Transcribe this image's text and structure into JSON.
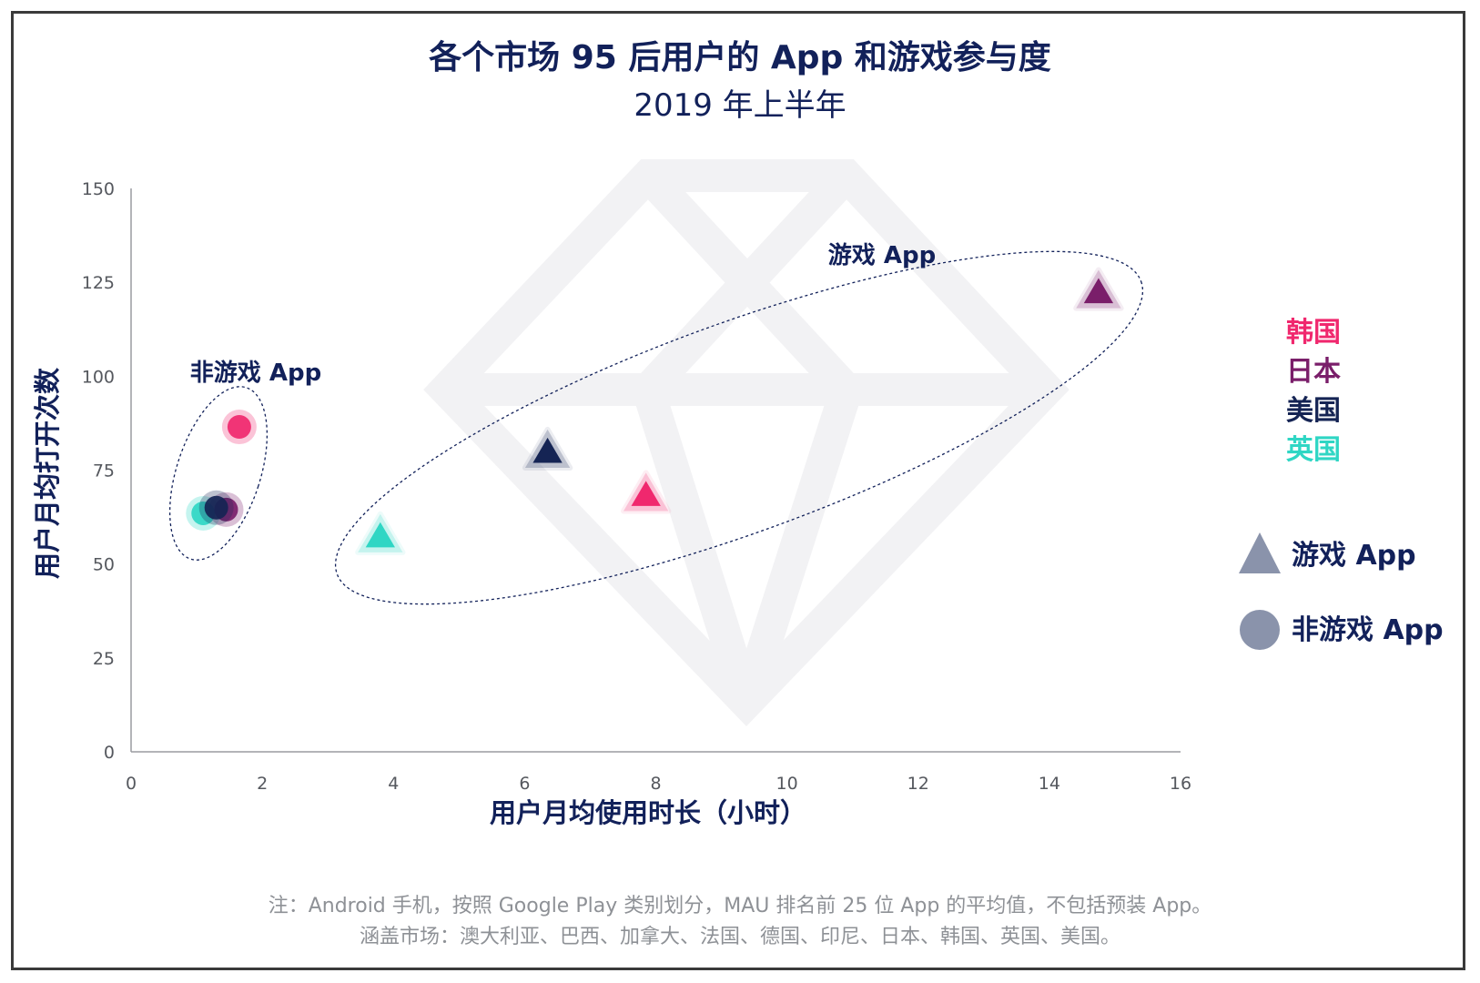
{
  "chart_data": {
    "type": "scatter",
    "title": "各个市场 95 后用户的 App 和游戏参与度",
    "subtitle": "2019 年上半年",
    "xlabel": "用户月均使用时长（小时）",
    "ylabel": "用户月均打开次数",
    "xlim": [
      0,
      16
    ],
    "ylim": [
      0,
      150
    ],
    "xticks": [
      "0",
      "2",
      "4",
      "6",
      "8",
      "10",
      "12",
      "14",
      "16"
    ],
    "yticks": [
      "0",
      "25",
      "50",
      "75",
      "100",
      "125",
      "150"
    ],
    "grid": false,
    "legend_position": "right",
    "countries": [
      {
        "name": "韩国",
        "color": "#f0286e"
      },
      {
        "name": "日本",
        "color": "#7a1e6a"
      },
      {
        "name": "美国",
        "color": "#152454"
      },
      {
        "name": "英国",
        "color": "#2fd6c4"
      }
    ],
    "shape_legend": [
      {
        "label": "游戏 App",
        "shape": "triangle",
        "color": "#8a93ab"
      },
      {
        "label": "非游戏 App",
        "shape": "circle",
        "color": "#8a93ab"
      }
    ],
    "groups": [
      {
        "label": "非游戏 App",
        "shape": "circle"
      },
      {
        "label": "游戏 App",
        "shape": "triangle"
      }
    ],
    "points": [
      {
        "country": "英国",
        "category": "非游戏 App",
        "x": 1.1,
        "y": 63.5
      },
      {
        "country": "日本",
        "category": "非游戏 App",
        "x": 1.45,
        "y": 64.5
      },
      {
        "country": "美国",
        "category": "非游戏 App",
        "x": 1.3,
        "y": 65
      },
      {
        "country": "韩国",
        "category": "非游戏 App",
        "x": 1.65,
        "y": 86.5
      },
      {
        "country": "英国",
        "category": "游戏 App",
        "x": 3.8,
        "y": 57
      },
      {
        "country": "美国",
        "category": "游戏 App",
        "x": 6.35,
        "y": 79.5
      },
      {
        "country": "韩国",
        "category": "游戏 App",
        "x": 7.85,
        "y": 68
      },
      {
        "country": "日本",
        "category": "游戏 App",
        "x": 14.75,
        "y": 122
      }
    ]
  },
  "footnotes": [
    "注：Android 手机，按照 Google Play 类别划分，MAU 排名前 25 位 App 的平均值，不包括预装 App。",
    "涵盖市场：澳大利亚、巴西、加拿大、法国、德国、印尼、日本、韩国、英国、美国。"
  ],
  "watermark": "diamond-logo",
  "colors": {
    "title": "#12215a",
    "axis": "#9a9ca0",
    "footnote": "#8e9196",
    "watermark": "#f2f2f4"
  }
}
